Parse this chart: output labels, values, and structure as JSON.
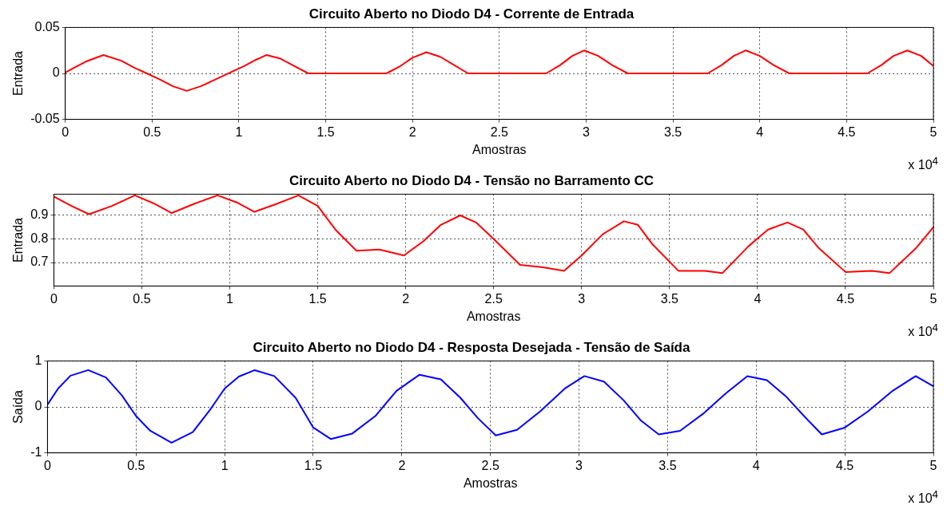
{
  "chart_data": [
    {
      "type": "line",
      "title": "Circuito Aberto no Diodo D4 - Corrente de Entrada",
      "xlabel": "Amostras",
      "ylabel": "Entrada",
      "annotations": [
        "x 10$^{4}$"
      ],
      "xlim": [
        0,
        5
      ],
      "xticks": [
        0,
        0.5,
        1,
        1.5,
        2,
        2.5,
        3,
        3.5,
        4,
        4.5,
        5
      ],
      "ylim": [
        -0.05,
        0.05
      ],
      "yticks": [
        -0.05,
        0,
        0.05
      ],
      "grid": true,
      "legend": false,
      "marker": "none",
      "line_style": "solid",
      "x": [
        0,
        0.06,
        0.12,
        0.22,
        0.32,
        0.4,
        0.47,
        0.55,
        0.62,
        0.7,
        0.78,
        0.86,
        0.95,
        1.03,
        1.1,
        1.16,
        1.24,
        1.32,
        1.4,
        1.85,
        1.93,
        2.0,
        2.08,
        2.16,
        2.24,
        2.32,
        2.77,
        2.85,
        2.92,
        2.99,
        3.07,
        3.15,
        3.24,
        3.7,
        3.78,
        3.85,
        3.92,
        4.0,
        4.08,
        4.17,
        4.62,
        4.7,
        4.77,
        4.85,
        4.93,
        5.0
      ],
      "series": [
        {
          "color": "#ff0000",
          "values": [
            0.001,
            0.007,
            0.013,
            0.02,
            0.014,
            0.006,
            0,
            -0.007,
            -0.014,
            -0.019,
            -0.014,
            -0.007,
            0.001,
            0.008,
            0.015,
            0.02,
            0.016,
            0.008,
            0,
            0,
            0.008,
            0.017,
            0.023,
            0.018,
            0.009,
            0,
            0,
            0.009,
            0.019,
            0.025,
            0.019,
            0.009,
            0,
            0,
            0.009,
            0.019,
            0.025,
            0.019,
            0.009,
            0,
            0,
            0.009,
            0.019,
            0.025,
            0.019,
            0.008
          ]
        }
      ]
    },
    {
      "type": "line",
      "title": "Circuito Aberto no Diodo D4 - Tensão no Barramento CC",
      "xlabel": "Amostras",
      "ylabel": "Entrada",
      "annotations": [
        "x 10$^{4}$"
      ],
      "xlim": [
        0,
        5
      ],
      "xticks": [
        0,
        0.5,
        1,
        1.5,
        2,
        2.5,
        3,
        3.5,
        4,
        4.5,
        5
      ],
      "ylim": [
        0.6,
        0.99
      ],
      "yticks": [
        0.7,
        0.8,
        0.9
      ],
      "grid": true,
      "legend": false,
      "marker": "none",
      "line_style": "solid",
      "x": [
        0,
        0.1,
        0.2,
        0.33,
        0.46,
        0.57,
        0.67,
        0.8,
        0.93,
        1.04,
        1.14,
        1.27,
        1.39,
        1.5,
        1.6,
        1.72,
        1.85,
        1.99,
        2.1,
        2.2,
        2.31,
        2.4,
        2.5,
        2.65,
        2.78,
        2.9,
        3.0,
        3.12,
        3.24,
        3.32,
        3.4,
        3.55,
        3.7,
        3.8,
        3.95,
        4.06,
        4.17,
        4.26,
        4.35,
        4.5,
        4.65,
        4.75,
        4.9,
        5.0
      ],
      "series": [
        {
          "color": "#ff0000",
          "values": [
            0.98,
            0.94,
            0.905,
            0.94,
            0.985,
            0.95,
            0.91,
            0.95,
            0.985,
            0.955,
            0.915,
            0.95,
            0.985,
            0.94,
            0.84,
            0.75,
            0.755,
            0.73,
            0.79,
            0.86,
            0.9,
            0.87,
            0.8,
            0.69,
            0.68,
            0.665,
            0.73,
            0.82,
            0.875,
            0.86,
            0.78,
            0.665,
            0.665,
            0.655,
            0.77,
            0.84,
            0.87,
            0.84,
            0.76,
            0.66,
            0.665,
            0.655,
            0.76,
            0.85
          ]
        }
      ]
    },
    {
      "type": "line",
      "title": "Circuito Aberto no Diodo D4 - Resposta Desejada - Tensão de Saída",
      "xlabel": "Amostras",
      "ylabel": "Saída",
      "annotations": [
        "x 10$^{4}$"
      ],
      "xlim": [
        0,
        5
      ],
      "xticks": [
        0,
        0.5,
        1,
        1.5,
        2,
        2.5,
        3,
        3.5,
        4,
        4.5,
        5
      ],
      "ylim": [
        -1,
        1
      ],
      "yticks": [
        -1,
        0,
        1
      ],
      "grid": true,
      "legend": false,
      "marker": "none",
      "line_style": "solid",
      "x": [
        0,
        0.06,
        0.13,
        0.23,
        0.33,
        0.42,
        0.5,
        0.58,
        0.7,
        0.82,
        0.92,
        1.0,
        1.08,
        1.17,
        1.28,
        1.4,
        1.5,
        1.6,
        1.72,
        1.85,
        1.97,
        2.1,
        2.22,
        2.33,
        2.43,
        2.53,
        2.65,
        2.78,
        2.92,
        3.03,
        3.14,
        3.25,
        3.35,
        3.45,
        3.57,
        3.7,
        3.83,
        3.95,
        4.06,
        4.17,
        4.27,
        4.37,
        4.5,
        4.63,
        4.77,
        4.9,
        5.0
      ],
      "series": [
        {
          "color": "#0000ff",
          "values": [
            0.05,
            0.4,
            0.68,
            0.8,
            0.64,
            0.25,
            -0.2,
            -0.52,
            -0.78,
            -0.55,
            -0.05,
            0.4,
            0.66,
            0.8,
            0.67,
            0.2,
            -0.45,
            -0.7,
            -0.58,
            -0.2,
            0.35,
            0.7,
            0.6,
            0.2,
            -0.25,
            -0.62,
            -0.5,
            -0.1,
            0.4,
            0.67,
            0.55,
            0.15,
            -0.3,
            -0.6,
            -0.52,
            -0.15,
            0.3,
            0.67,
            0.58,
            0.22,
            -0.2,
            -0.6,
            -0.45,
            -0.1,
            0.35,
            0.67,
            0.45
          ]
        }
      ]
    }
  ]
}
